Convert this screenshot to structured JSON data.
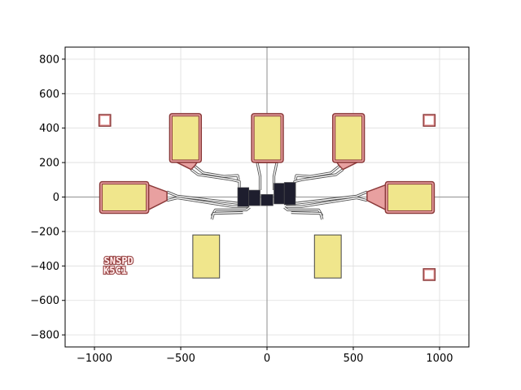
{
  "chart_data": {
    "type": "scatter",
    "title": "",
    "xlabel": "",
    "ylabel": "",
    "xlim": [
      -1170,
      1170
    ],
    "ylim": [
      -870,
      870
    ],
    "grid": true,
    "x_ticks": [
      -1000,
      -500,
      0,
      500,
      1000
    ],
    "x_tick_labels": [
      "−1000",
      "−500",
      "0",
      "500",
      "1000"
    ],
    "y_ticks": [
      -800,
      -600,
      -400,
      -200,
      0,
      200,
      400,
      600,
      800
    ],
    "y_tick_labels": [
      "−800",
      "−600",
      "−400",
      "−200",
      "0",
      "200",
      "400",
      "600",
      "800"
    ],
    "reference_lines": {
      "x": 0,
      "y": 0
    },
    "colors": {
      "pad_fill": "#f0e68c",
      "pad_outline": "#8b3a3a",
      "pad_outline_inner": "#e8a0a0",
      "trace": "#505050",
      "chip_fill": "#1e1e2e",
      "grid": "#dddddd",
      "axis_ref": "#a0a0a0"
    },
    "layout_text": [
      "SNSPD",
      "K5C1"
    ],
    "pads": [
      {
        "name": "top-left-pad",
        "x0": -550,
        "x1": -395,
        "y0": 215,
        "y1": 470
      },
      {
        "name": "top-center-pad",
        "x0": -75,
        "x1": 80,
        "y0": 215,
        "y1": 470
      },
      {
        "name": "top-right-pad",
        "x0": 395,
        "x1": 550,
        "y0": 215,
        "y1": 470
      },
      {
        "name": "left-pad",
        "x0": -955,
        "x1": -700,
        "y0": -80,
        "y1": 75
      },
      {
        "name": "right-pad",
        "x0": 700,
        "x1": 955,
        "y0": -80,
        "y1": 75
      },
      {
        "name": "bottom-left-pad",
        "x0": -430,
        "x1": -275,
        "y0": -470,
        "y1": -220
      },
      {
        "name": "bottom-right-pad",
        "x0": 275,
        "x1": 430,
        "y0": -470,
        "y1": -220
      }
    ],
    "markers": [
      {
        "name": "marker-top-left",
        "x": -940,
        "y": 445,
        "size": 55
      },
      {
        "name": "marker-top-right",
        "x": 940,
        "y": 445,
        "size": 55
      },
      {
        "name": "marker-bottom-right",
        "x": 940,
        "y": -450,
        "size": 55
      }
    ],
    "chips": [
      {
        "name": "chip-left-a",
        "x0": -170,
        "x1": -105,
        "y0": -55,
        "y1": 55
      },
      {
        "name": "chip-left-b",
        "x0": -105,
        "x1": -40,
        "y0": -50,
        "y1": 40
      },
      {
        "name": "chip-center",
        "x0": -35,
        "x1": 35,
        "y0": -50,
        "y1": 15
      },
      {
        "name": "chip-right-a",
        "x0": 40,
        "x1": 100,
        "y0": -40,
        "y1": 80
      },
      {
        "name": "chip-right-b",
        "x0": 100,
        "x1": 165,
        "y0": -45,
        "y1": 85
      }
    ]
  }
}
